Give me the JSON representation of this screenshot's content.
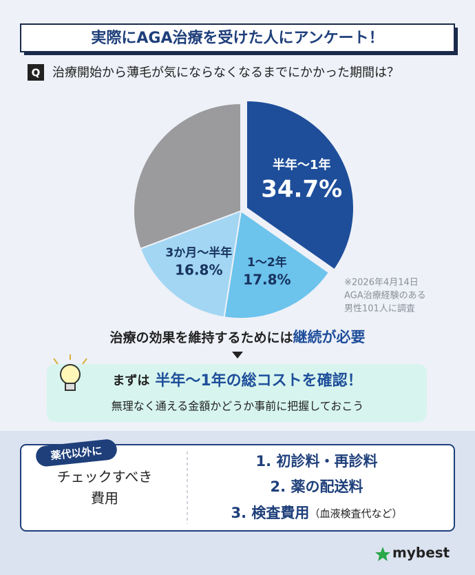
{
  "header": {
    "title": "実際にAGA治療を受けた人にアンケート！"
  },
  "chart_data": {
    "type": "pie",
    "question_label": "Q",
    "title": "治療開始から薄毛が気にならなくなるまでにかかった期間は？",
    "categories": [
      "半年〜1年",
      "1〜2年",
      "3か月〜半年",
      null
    ],
    "values": [
      34.7,
      17.8,
      16.8,
      30.7
    ],
    "value_labels": [
      "34.7%",
      "17.8%",
      "16.8%",
      null
    ],
    "colors": [
      "#1e4e9a",
      "#6cc3ec",
      "#a2d6f3",
      "#9b9b9d"
    ],
    "label_colors": [
      "#ffffff",
      "#17325e",
      "#17325e",
      null
    ],
    "note": [
      "※2026年4月14日",
      "AGA治療経験のある",
      "男性101人に調査"
    ]
  },
  "message": {
    "text": "治療の効果を維持するためには",
    "emphasis": "継続が必要"
  },
  "callout": {
    "lead": "まずは",
    "emphasis": "半年〜1年の総コストを確認！",
    "sub": "無理なく通える金額かどうか事前に把握しておこう"
  },
  "checklist": {
    "tag": "薬代以外に",
    "heading": [
      "チェックすべき",
      "費用"
    ],
    "items": [
      {
        "text": "1. 初診料・再診料"
      },
      {
        "text": "2. 薬の配送料"
      },
      {
        "text": "3. 検査費用",
        "note": "（血液検査代など）"
      }
    ]
  },
  "footer": {
    "logo": "mybest"
  }
}
